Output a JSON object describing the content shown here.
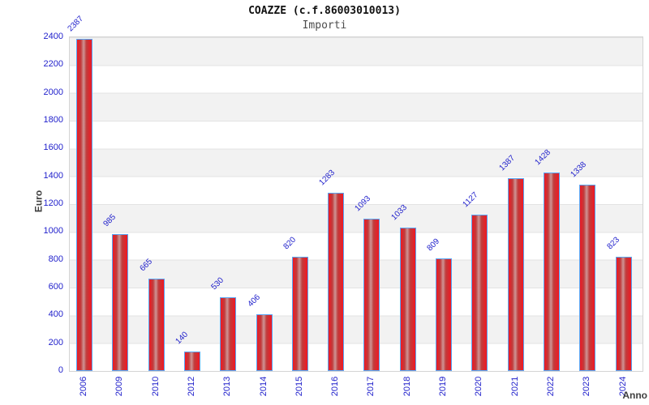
{
  "header": {
    "title": "COAZZE (c.f.86003010013)",
    "subtitle": "Importi"
  },
  "chart_data": {
    "type": "bar",
    "title": "COAZZE (c.f.86003010013)",
    "subtitle": "Importi",
    "xlabel": "Anno",
    "ylabel": "Euro",
    "categories": [
      "2006",
      "2009",
      "2010",
      "2012",
      "2013",
      "2014",
      "2015",
      "2016",
      "2017",
      "2018",
      "2019",
      "2020",
      "2021",
      "2022",
      "2023",
      "2024"
    ],
    "values": [
      2387,
      985,
      665,
      140,
      530,
      406,
      820,
      1283,
      1093,
      1033,
      809,
      1127,
      1387,
      1428,
      1338,
      823
    ],
    "ylim": [
      0,
      2400
    ],
    "ytick_step": 200,
    "ytick_labels": [
      "0",
      "200",
      "400",
      "600",
      "800",
      "1000",
      "1200",
      "1400",
      "1600",
      "1800",
      "2000",
      "2200",
      "2400"
    ],
    "grid": "horizontal alternating bands every 200 units, gray/white",
    "legend_position": "none",
    "bar_labels_rotation_deg": -45,
    "xtick_rotation_deg": -90,
    "colors": {
      "bar_fill_edge": "#f01822",
      "bar_fill_mid": "#cf9595",
      "bar_border": "#58a6f5",
      "label_blue": "#2222cc",
      "band_gray": "#f2f2f2",
      "gridline": "#e3e3e3",
      "axis_title_gray": "#3f3f3f",
      "title_black": "#111111",
      "subtitle_gray": "#4d4d4d",
      "background": "#ffffff"
    }
  }
}
